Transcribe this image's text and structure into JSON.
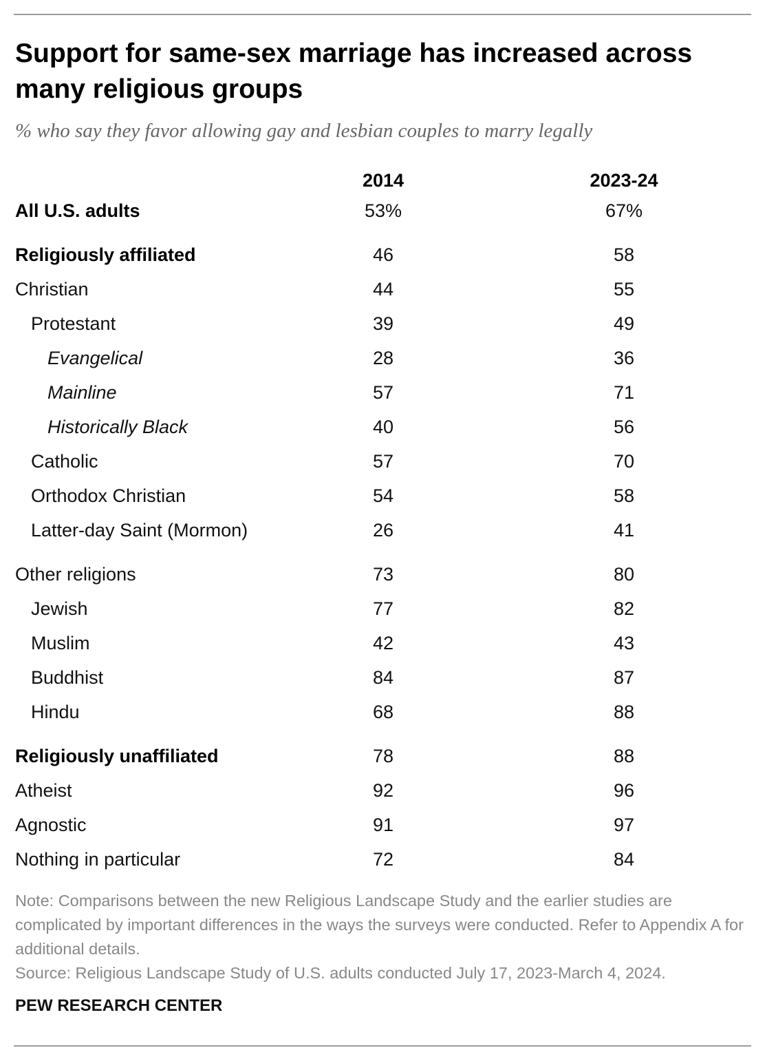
{
  "chart_data": {
    "type": "table",
    "title": "Support for same-sex marriage has increased across many religious groups",
    "subtitle": "% who say they favor allowing gay and lesbian couples to marry legally",
    "columns": [
      "2014",
      "2023-24"
    ],
    "rows": [
      {
        "label": "All U.S. adults",
        "style": "bold",
        "level": 0,
        "values": [
          "53%",
          "67%"
        ]
      },
      {
        "label": "Religiously affiliated",
        "style": "bold",
        "level": 0,
        "values": [
          "46",
          "58"
        ]
      },
      {
        "label": "Christian",
        "style": "normal",
        "level": 0,
        "values": [
          "44",
          "55"
        ]
      },
      {
        "label": "Protestant",
        "style": "normal",
        "level": 1,
        "values": [
          "39",
          "49"
        ]
      },
      {
        "label": "Evangelical",
        "style": "italic",
        "level": 2,
        "values": [
          "28",
          "36"
        ]
      },
      {
        "label": "Mainline",
        "style": "italic",
        "level": 2,
        "values": [
          "57",
          "71"
        ]
      },
      {
        "label": "Historically Black",
        "style": "italic",
        "level": 2,
        "values": [
          "40",
          "56"
        ]
      },
      {
        "label": "Catholic",
        "style": "normal",
        "level": 1,
        "values": [
          "57",
          "70"
        ]
      },
      {
        "label": "Orthodox Christian",
        "style": "normal",
        "level": 1,
        "values": [
          "54",
          "58"
        ]
      },
      {
        "label": "Latter-day Saint (Mormon)",
        "style": "normal",
        "level": 1,
        "values": [
          "26",
          "41"
        ]
      },
      {
        "label": "Other religions",
        "style": "normal",
        "level": 0,
        "values": [
          "73",
          "80"
        ]
      },
      {
        "label": "Jewish",
        "style": "normal",
        "level": 1,
        "values": [
          "77",
          "82"
        ]
      },
      {
        "label": "Muslim",
        "style": "normal",
        "level": 1,
        "values": [
          "42",
          "43"
        ]
      },
      {
        "label": "Buddhist",
        "style": "normal",
        "level": 1,
        "values": [
          "84",
          "87"
        ]
      },
      {
        "label": "Hindu",
        "style": "normal",
        "level": 1,
        "values": [
          "68",
          "88"
        ]
      },
      {
        "label": "Religiously unaffiliated",
        "style": "bold",
        "level": 0,
        "values": [
          "78",
          "88"
        ]
      },
      {
        "label": "Atheist",
        "style": "normal",
        "level": 0,
        "values": [
          "92",
          "96"
        ]
      },
      {
        "label": "Agnostic",
        "style": "normal",
        "level": 0,
        "values": [
          "91",
          "97"
        ]
      },
      {
        "label": "Nothing in particular",
        "style": "normal",
        "level": 0,
        "values": [
          "72",
          "84"
        ]
      }
    ]
  },
  "footer": {
    "note": "Note: Comparisons between the new Religious Landscape Study and the earlier studies are complicated by important differences in the ways the surveys were conducted. Refer to Appendix A for additional details.",
    "source": "Source: Religious Landscape Study of U.S. adults conducted July 17, 2023-March 4, 2024.",
    "brand": "PEW RESEARCH CENTER"
  }
}
